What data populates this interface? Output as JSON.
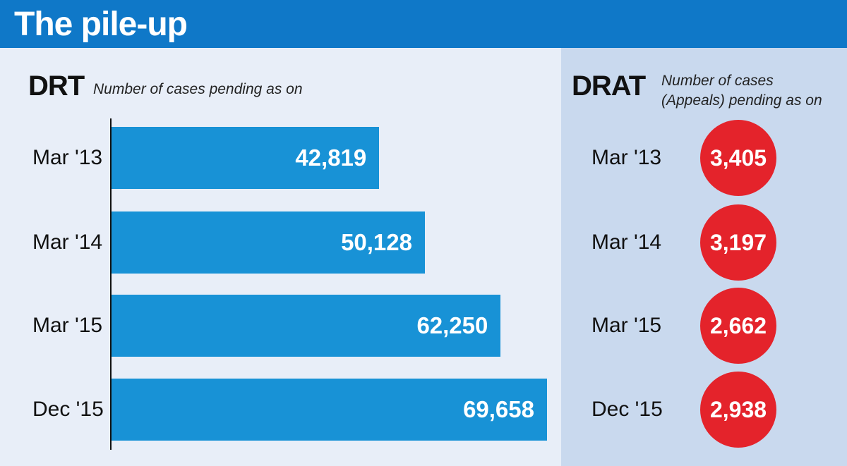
{
  "title": "The pile-up",
  "chart_data": [
    {
      "type": "bar",
      "orientation": "horizontal",
      "title": "DRT",
      "subtitle": "Number of cases pending as on",
      "categories": [
        "Mar '13",
        "Mar '14",
        "Mar '15",
        "Dec '15"
      ],
      "values": [
        42819,
        50128,
        62250,
        69658
      ],
      "value_labels": [
        "42,819",
        "50,128",
        "62,250",
        "69,658"
      ],
      "color": "#1892d6",
      "xlim": [
        0,
        69658
      ]
    },
    {
      "type": "table",
      "title": "DRAT",
      "subtitle": [
        "Number of cases",
        "(Appeals) pending as on"
      ],
      "categories": [
        "Mar '13",
        "Mar '14",
        "Mar '15",
        "Dec '15"
      ],
      "values": [
        3405,
        3197,
        2662,
        2938
      ],
      "value_labels": [
        "3,405",
        "3,197",
        "2,662",
        "2,938"
      ],
      "color": "#e4232b"
    }
  ]
}
